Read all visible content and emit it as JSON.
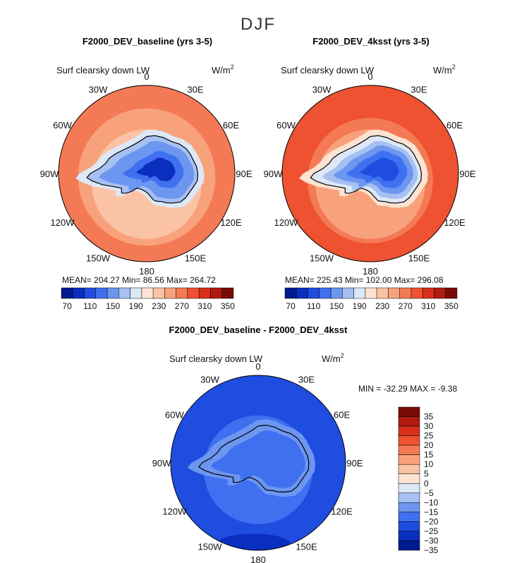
{
  "season_title": "DJF",
  "colors": {
    "abs_scale": [
      "#001a8f",
      "#0a2fbf",
      "#1f4de0",
      "#3f70f0",
      "#6d96f0",
      "#a7c0f2",
      "#dde8f7",
      "#fde3d2",
      "#fbc3a5",
      "#f8a27c",
      "#f47a55",
      "#ee5230",
      "#d8301a",
      "#b11a10",
      "#7a0a05"
    ],
    "diff_scale": [
      "#001a8f",
      "#0a2fbf",
      "#1f4de0",
      "#3f70f0",
      "#6d96f0",
      "#a7c0f2",
      "#dde8f7",
      "#fde3d2",
      "#fbc3a5",
      "#f8a27c",
      "#f47a55",
      "#ee5230",
      "#d8301a",
      "#b11a10",
      "#7a0a05"
    ],
    "coast": "#000000"
  },
  "chart_data": [
    {
      "type": "heatmap",
      "projection": "south-polar-stereographic",
      "title": "F2000_DEV_baseline (yrs 3-5)",
      "variable": "Surf clearsky down LW",
      "units_base": "W/m",
      "units_exp": "2",
      "longitude_labels": [
        "0",
        "30E",
        "60E",
        "90E",
        "120E",
        "150E",
        "180",
        "150W",
        "120W",
        "90W",
        "60W",
        "30W"
      ],
      "stats": {
        "mean_label": "MEAN=",
        "mean": "204.27",
        "min_label": "Min=",
        "min": "86.56",
        "max_label": "Max=",
        "max": "264.72"
      },
      "colorbar_ticks": [
        "70",
        "110",
        "150",
        "190",
        "230",
        "270",
        "310",
        "350"
      ],
      "colorbar_range": [
        60,
        360
      ],
      "rings": [
        {
          "lat": -50,
          "value": 265
        },
        {
          "lat": -55,
          "value": 255
        },
        {
          "lat": -58,
          "value": 245
        },
        {
          "lat": -62,
          "value": 232
        },
        {
          "lat": -66,
          "value": 222
        }
      ],
      "shelf_value": 196,
      "ice_levels": [
        178,
        158,
        140,
        122,
        98
      ]
    },
    {
      "type": "heatmap",
      "projection": "south-polar-stereographic",
      "title": "F2000_DEV_4ksst (yrs 3-5)",
      "variable": "Surf clearsky down LW",
      "units_base": "W/m",
      "units_exp": "2",
      "longitude_labels": [
        "0",
        "30E",
        "60E",
        "90E",
        "120E",
        "150E",
        "180",
        "150W",
        "120W",
        "90W",
        "60W",
        "30W"
      ],
      "stats": {
        "mean_label": "MEAN=",
        "mean": "225.43",
        "min_label": "Min=",
        "min": "102.00",
        "max_label": "Max=",
        "max": "296.08"
      },
      "colorbar_ticks": [
        "70",
        "110",
        "150",
        "190",
        "230",
        "270",
        "310",
        "350"
      ],
      "colorbar_range": [
        60,
        360
      ],
      "rings": [
        {
          "lat": -50,
          "value": 296
        },
        {
          "lat": -54,
          "value": 285
        },
        {
          "lat": -58,
          "value": 272
        },
        {
          "lat": -62,
          "value": 258
        },
        {
          "lat": -66,
          "value": 242
        }
      ],
      "shelf_value": 212,
      "ice_levels": [
        192,
        172,
        152,
        132,
        112
      ]
    },
    {
      "type": "heatmap",
      "projection": "south-polar-stereographic",
      "title": "F2000_DEV_baseline - F2000_DEV_4ksst",
      "variable": "Surf clearsky down LW",
      "units_base": "W/m",
      "units_exp": "2",
      "longitude_labels": [
        "0",
        "30E",
        "60E",
        "90E",
        "120E",
        "150E",
        "180",
        "150W",
        "120W",
        "90W",
        "60W",
        "30W"
      ],
      "stats": {
        "min_label": "MIN =",
        "min": "-32.29",
        "max_label": "MAX =",
        "max": "-9.38"
      },
      "colorbar_ticks": [
        "35",
        "30",
        "25",
        "20",
        "15",
        "10",
        "5",
        "0",
        "−5",
        "−10",
        "−15",
        "−20",
        "−25",
        "−30",
        "−35"
      ],
      "colorbar_range": [
        -37.5,
        37.5
      ],
      "rings": [
        {
          "lat": -50,
          "value": -27
        },
        {
          "lat": -55,
          "value": -25
        },
        {
          "lat": -62,
          "value": -22
        },
        {
          "lat": -66,
          "value": -18
        }
      ],
      "shelf_value": -14,
      "ice_levels": [
        -17,
        -19
      ],
      "blob_value": -32
    }
  ]
}
